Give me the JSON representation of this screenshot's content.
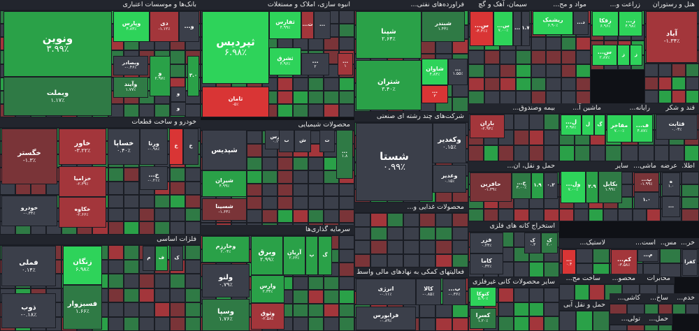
{
  "colors": {
    "pos3": "#2ed35a",
    "pos2": "#2aa148",
    "pos1": "#2f7a45",
    "neutral": "#3b3f4a",
    "neg1": "#7a3438",
    "neg2": "#a3363b",
    "neg3": "#d93535"
  },
  "chart_data": {
    "type": "treemap",
    "sectors": [
      {
        "id": "banks",
        "title": "بانک‌ها و موسسات اعتباری",
        "tiles": [
          {
            "s": "ونوین",
            "p": "۳.۹۹٪",
            "c": "pos2"
          },
          {
            "s": "وبملت",
            "p": "۱.۱۷٪",
            "c": "pos1"
          },
          {
            "s": "وپارس",
            "p": "۴.۸۳٪",
            "c": "pos3"
          },
          {
            "s": "دی",
            "p": "-۱.۱۲٪",
            "c": "neg2"
          },
          {
            "s": "و...",
            "p": "",
            "c": "neutral"
          },
          {
            "s": "وبصادر",
            "p": "-۰.۴۶٪",
            "c": "neutral"
          },
          {
            "s": "و",
            "p": "۲.۹۷٪",
            "c": "pos2"
          },
          {
            "s": "۳.۰",
            "p": "",
            "c": "pos2"
          },
          {
            "s": "وآیند",
            "p": "۱.۷۷٪",
            "c": "pos1"
          },
          {
            "s": "و",
            "p": "",
            "c": "neutral"
          },
          {
            "s": "و",
            "p": "",
            "c": "neutral"
          }
        ]
      },
      {
        "id": "real_estate",
        "title": "انبوه سازی، املاک و مستغلات",
        "tiles": [
          {
            "s": "ثپردیس",
            "p": "۶.۹۸٪",
            "c": "pos3"
          },
          {
            "s": "ثفارس",
            "p": "۴.۹۹٪",
            "c": "pos3"
          },
          {
            "s": "ث...",
            "p": "",
            "c": "neg2"
          },
          {
            "s": "...",
            "p": "",
            "c": "neutral"
          },
          {
            "s": "ثشرق",
            "p": "۴.۹۶٪",
            "c": "pos3"
          },
          {
            "s": "...",
            "p": "۲",
            "c": "neutral"
          },
          {
            "s": "...",
            "p": "۱",
            "c": "neg2"
          },
          {
            "s": "ثامان",
            "p": "-۵٪",
            "c": "neg3"
          }
        ]
      },
      {
        "id": "refinery",
        "title": "فراورده‌های نفتی...",
        "tiles": [
          {
            "s": "شپنا",
            "p": "۲.۶۴٪",
            "c": "pos2"
          },
          {
            "s": "شبندر",
            "p": "۱.۴۳٪",
            "c": "pos1"
          },
          {
            "s": "شاوان",
            "p": "۴.۸۳٪",
            "c": "pos3"
          },
          {
            "s": "...",
            "p": "۱.۵۵٪",
            "c": "neutral"
          },
          {
            "s": "شتران",
            "p": "۳.۴۰٪",
            "c": "pos2"
          },
          {
            "s": "...",
            "p": "۳",
            "c": "neg3"
          }
        ]
      },
      {
        "id": "cement",
        "title": "سیمان، آهک و گچ",
        "tiles": [
          {
            "s": "س...",
            "p": "-۴.۳۱٪",
            "c": "neg3"
          },
          {
            "s": "س...",
            "p": "۷.۰۰٪",
            "c": "pos3"
          },
          {
            "s": "...",
            "p": "",
            "c": "neutral"
          },
          {
            "s": "۱.۷",
            "p": "",
            "c": "neutral"
          }
        ]
      },
      {
        "id": "pharma",
        "title": "مواد و مح...",
        "tiles": [
          {
            "s": "ریشمک",
            "p": "۶.۹۰٪",
            "c": "pos3"
          },
          {
            "s": "د...",
            "p": "",
            "c": "neutral"
          }
        ]
      },
      {
        "id": "agri",
        "title": "زراعت و...",
        "tiles": [
          {
            "s": "زقکا",
            "p": "۶.۹۶٪",
            "c": "pos3"
          },
          {
            "s": "ز...",
            "p": "۴.۹۸٪",
            "c": "pos3"
          },
          {
            "s": "س...",
            "p": "۲.۸۷٪",
            "c": "pos3"
          },
          {
            "s": "ز",
            "p": "",
            "c": "pos3"
          },
          {
            "s": "ز",
            "p": "",
            "c": "pos3"
          }
        ]
      },
      {
        "id": "hotels",
        "title": "هتل و رستوران",
        "tiles": [
          {
            "s": "آباد",
            "p": "-۱.۳۴٪",
            "c": "neg2"
          }
        ]
      },
      {
        "id": "multi",
        "title": "شرکت‌های چند رشته ای صنعتی",
        "tiles": [
          {
            "s": "شستا",
            "p": "۰.۹۹٪",
            "c": "neutral"
          },
          {
            "s": "وکغدیر",
            "p": "۰.۱۵٪",
            "c": "neutral"
          },
          {
            "s": "وغدیر",
            "p": "۰.۱۵٪",
            "c": "neutral"
          }
        ]
      },
      {
        "id": "auto",
        "title": "خودرو و ساخت قطعات",
        "tiles": [
          {
            "s": "خگستر",
            "p": "-۱.۳٪",
            "c": "neg1"
          },
          {
            "s": "خاور",
            "p": "-۳.۲۲٪",
            "c": "neg2"
          },
          {
            "s": "خساپا",
            "p": "۰.۴۰٪",
            "c": "neutral"
          },
          {
            "s": "ورنا",
            "p": "-۰.۹۸٪",
            "c": "neutral"
          },
          {
            "s": "خ",
            "p": "",
            "c": "neg3"
          },
          {
            "s": "خ",
            "p": "",
            "c": "neutral"
          },
          {
            "s": "خزامیا",
            "p": "-۲.۳۹٪",
            "c": "neg2"
          },
          {
            "s": "خ...",
            "p": "-۰.۲۱٪",
            "c": "neutral"
          },
          {
            "s": "خودرو",
            "p": "-۰.۳۴٪",
            "c": "neutral"
          },
          {
            "s": "خکاوه",
            "p": "-۲.۶۶٪",
            "c": "neg2"
          }
        ]
      },
      {
        "id": "chemicals",
        "title": "محصولات شیمیایی",
        "tiles": [
          {
            "s": "فارس",
            "p": "۰.۱۷٪",
            "c": "neutral"
          },
          {
            "s": "ش",
            "p": "",
            "c": "neutral"
          },
          {
            "s": "ب",
            "p": "",
            "c": "neutral"
          },
          {
            "s": "ت",
            "p": "",
            "c": "neutral"
          },
          {
            "s": "شپدیس",
            "p": "",
            "c": "neutral"
          },
          {
            "s": "...",
            "p": "۱.۸",
            "c": "pos1"
          },
          {
            "s": "شیران",
            "p": "۴.۹۹٪",
            "c": "pos2"
          },
          {
            "s": "شسینا",
            "p": "-۱.۶۳٪",
            "c": "neg1"
          }
        ]
      },
      {
        "id": "metals",
        "title": "فلزات اساسی",
        "tiles": [
          {
            "s": "فملی",
            "p": "۰.۱۴٪",
            "c": "neutral"
          },
          {
            "s": "ذوب",
            "p": "-۰.۱۸٪",
            "c": "neutral"
          },
          {
            "s": "زنگان",
            "p": "۶.۹۸٪",
            "c": "pos3"
          },
          {
            "s": "فسبزوار",
            "p": "۱.۶۶٪",
            "c": "pos1"
          },
          {
            "s": "ف",
            "p": "",
            "c": "pos2"
          },
          {
            "s": "ف",
            "p": "",
            "c": "pos2"
          },
          {
            "s": "ک",
            "p": "",
            "c": "neutral"
          },
          {
            "s": "م",
            "p": "",
            "c": "neutral"
          }
        ]
      },
      {
        "id": "investment",
        "title": "سرمایه گذاری‌ها",
        "tiles": [
          {
            "s": "وخارزم",
            "p": "۲.۰۴٪",
            "c": "pos2"
          },
          {
            "s": "وبرق",
            "p": "۲.۹۹٪",
            "c": "pos2"
          },
          {
            "s": "آریان",
            "p": "۲.۶۳٪",
            "c": "pos2"
          },
          {
            "s": "پ",
            "p": "",
            "c": "pos2"
          },
          {
            "s": "گ",
            "p": "",
            "c": "pos2"
          },
          {
            "s": "ولنو",
            "p": "۰.۷۹٪",
            "c": "neutral"
          },
          {
            "s": "وارس",
            "p": "۲.۳۴٪",
            "c": "pos2"
          },
          {
            "s": "وثوق",
            "p": "-۲.۵۸٪",
            "c": "neg2"
          },
          {
            "s": "وسپا",
            "p": "۱.۷۶٪",
            "c": "pos1"
          }
        ]
      },
      {
        "id": "food",
        "title": "محصولات غذایی و...",
        "tiles": []
      },
      {
        "id": "finance_aux",
        "title": "فعالیتهای کمکی به نهادهای مالی واسط",
        "tiles": [
          {
            "s": "انرژی",
            "p": "-۰.۱۱٪",
            "c": "neutral"
          },
          {
            "s": "کالا",
            "p": "-۰.۸۵٪",
            "c": "neutral"
          },
          {
            "s": "ب...",
            "p": "-۰.۳۶٪",
            "c": "neutral"
          },
          {
            "s": "فرابورس",
            "p": "-۰.۸۹٪",
            "c": "neutral"
          }
        ]
      },
      {
        "id": "etf",
        "title": "بیمه وصندوق...",
        "tiles": [
          {
            "s": "باران",
            "p": "-۲.۹۳٪",
            "c": "neg2"
          }
        ]
      },
      {
        "id": "machinery",
        "title": "ماشین آ...",
        "tiles": [
          {
            "s": "ل...",
            "p": "۴.۹۷٪",
            "c": "pos3"
          },
          {
            "s": "ل",
            "p": "",
            "c": "pos3"
          },
          {
            "s": "گ",
            "p": "",
            "c": "pos3"
          }
        ]
      },
      {
        "id": "computers",
        "title": "رایانه...",
        "tiles": [
          {
            "s": "مفاخر",
            "p": "۷.۰۰٪",
            "c": "pos3"
          },
          {
            "s": "ف...",
            "p": "۴.۸۷٪",
            "c": "pos3"
          }
        ]
      },
      {
        "id": "sugar",
        "title": "قند و شکر",
        "tiles": [
          {
            "s": "قثابت",
            "p": "۰.۰۴٪",
            "c": "neutral"
          }
        ]
      },
      {
        "id": "transport",
        "title": "حمل و نقل، ان...",
        "tiles": [
          {
            "s": "حافرین",
            "p": "-۱.۳۹٪",
            "c": "neg1"
          },
          {
            "s": "ح...",
            "p": "۳.۰۰٪",
            "c": "pos1"
          },
          {
            "s": "۱.۹",
            "p": "",
            "c": "pos2"
          },
          {
            "s": "۰.۲",
            "p": "",
            "c": "neutral"
          }
        ]
      },
      {
        "id": "other",
        "title": "سایر",
        "tiles": [
          {
            "s": "ول...",
            "p": "۷.۰۰٪",
            "c": "pos3"
          },
          {
            "s": "۲.۹",
            "p": "",
            "c": "pos2"
          },
          {
            "s": "بکابل",
            "p": "۱.۹۹٪",
            "c": "pos1"
          }
        ]
      },
      {
        "id": "mashi",
        "title": "ماشی...",
        "tiles": [
          {
            "s": "پ...",
            "p": "-۱.۹۹٪",
            "c": "neg1"
          },
          {
            "s": "۱.۰",
            "p": "",
            "c": "neutral"
          }
        ]
      },
      {
        "id": "arzeh",
        "title": "عرضه...",
        "tiles": [
          {
            "s": "ه",
            "p": "۱.۰",
            "c": "neutral"
          },
          {
            "s": "...",
            "p": "",
            "c": "neutral"
          }
        ]
      },
      {
        "id": "atla",
        "title": "اطلا...",
        "tiles": []
      },
      {
        "id": "mining",
        "title": "استخراج کانه های فلزی",
        "tiles": [
          {
            "s": "فزر",
            "p": "۰.۲۴٪",
            "c": "neutral"
          },
          {
            "s": "ک",
            "p": "۰.۳",
            "c": "neutral"
          },
          {
            "s": "ک",
            "p": "۲.۰",
            "c": "pos1"
          },
          {
            "s": "کاما",
            "p": "۰.۳۲٪",
            "c": "neutral"
          }
        ]
      },
      {
        "id": "tires",
        "title": "لاستیک...",
        "tiles": [
          {
            "s": "...",
            "p": "۰.۴",
            "c": "neg3"
          }
        ]
      },
      {
        "id": "ast",
        "title": "است...",
        "tiles": [
          {
            "s": "کم...",
            "p": "-۳.۵۸٪",
            "c": "neg2"
          },
          {
            "s": "م...",
            "p": "",
            "c": "neutral"
          }
        ]
      },
      {
        "id": "kh",
        "title": "خر...",
        "tiles": [
          {
            "s": "کفرا",
            "p": "",
            "c": "neutral"
          }
        ]
      },
      {
        "id": "nonmetal",
        "title": "سایر محصولات کانی غیرفلزی",
        "tiles": [
          {
            "s": "کتوکا",
            "p": "۵.۹۰٪",
            "c": "pos3"
          },
          {
            "s": "کسرا",
            "p": "۱.۲۰٪",
            "c": "pos1"
          }
        ]
      },
      {
        "id": "construction",
        "title": "ساخت مح...",
        "tiles": []
      },
      {
        "id": "mahsoo",
        "title": "محصو...",
        "tiles": []
      },
      {
        "id": "telecom",
        "title": "مخابرات",
        "tiles": []
      },
      {
        "id": "shipping",
        "title": "حمل و نقل آبی",
        "tiles": []
      },
      {
        "id": "kashi",
        "title": "کاشی...",
        "tiles": []
      },
      {
        "id": "sakh",
        "title": "ساخ...",
        "tiles": []
      },
      {
        "id": "khadam",
        "title": "خدم...",
        "tiles": []
      },
      {
        "id": "hamlo",
        "title": "حمل...",
        "tiles": []
      },
      {
        "id": "tolidi",
        "title": "تولی...",
        "tiles": []
      },
      {
        "id": "misc",
        "title": "مس...",
        "tiles": []
      }
    ]
  }
}
